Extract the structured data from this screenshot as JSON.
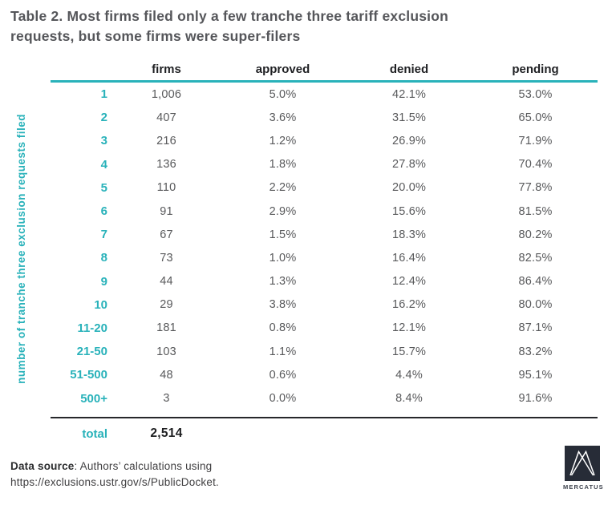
{
  "title": {
    "line1": "Table 2. Most firms filed only a few tranche three tariff exclusion",
    "line2": "requests, but some firms were super-filers"
  },
  "chart_data": {
    "type": "table",
    "title": "Table 2. Most firms filed only a few tranche three tariff exclusion requests, but some firms were super-filers",
    "row_axis_label": "number of tranche three exclusion requests filed",
    "columns": [
      "firms",
      "approved",
      "denied",
      "pending"
    ],
    "rows": [
      {
        "label": "1",
        "firms": "1,006",
        "approved": "5.0%",
        "denied": "42.1%",
        "pending": "53.0%"
      },
      {
        "label": "2",
        "firms": "407",
        "approved": "3.6%",
        "denied": "31.5%",
        "pending": "65.0%"
      },
      {
        "label": "3",
        "firms": "216",
        "approved": "1.2%",
        "denied": "26.9%",
        "pending": "71.9%"
      },
      {
        "label": "4",
        "firms": "136",
        "approved": "1.8%",
        "denied": "27.8%",
        "pending": "70.4%"
      },
      {
        "label": "5",
        "firms": "110",
        "approved": "2.2%",
        "denied": "20.0%",
        "pending": "77.8%"
      },
      {
        "label": "6",
        "firms": "91",
        "approved": "2.9%",
        "denied": "15.6%",
        "pending": "81.5%"
      },
      {
        "label": "7",
        "firms": "67",
        "approved": "1.5%",
        "denied": "18.3%",
        "pending": "80.2%"
      },
      {
        "label": "8",
        "firms": "73",
        "approved": "1.0%",
        "denied": "16.4%",
        "pending": "82.5%"
      },
      {
        "label": "9",
        "firms": "44",
        "approved": "1.3%",
        "denied": "12.4%",
        "pending": "86.4%"
      },
      {
        "label": "10",
        "firms": "29",
        "approved": "3.8%",
        "denied": "16.2%",
        "pending": "80.0%"
      },
      {
        "label": "11-20",
        "firms": "181",
        "approved": "0.8%",
        "denied": "12.1%",
        "pending": "87.1%"
      },
      {
        "label": "21-50",
        "firms": "103",
        "approved": "1.1%",
        "denied": "15.7%",
        "pending": "83.2%"
      },
      {
        "label": "51-500",
        "firms": "48",
        "approved": "0.6%",
        "denied": "4.4%",
        "pending": "95.1%"
      },
      {
        "label": "500+",
        "firms": "3",
        "approved": "0.0%",
        "denied": "8.4%",
        "pending": "91.6%"
      }
    ],
    "total": {
      "label": "total",
      "firms": "2,514"
    }
  },
  "footer": {
    "source_label": "Data source",
    "source_rest": ": Authors’ calculations using",
    "source_url": "https://exclusions.ustr.gov/s/PublicDocket."
  },
  "logo": {
    "text": "MERCATUS"
  },
  "colors": {
    "teal": "#29b2ba",
    "title_gray": "#55565a",
    "data_gray": "#58595b",
    "header_black": "#1f2023",
    "logo_navy": "#272c37"
  }
}
